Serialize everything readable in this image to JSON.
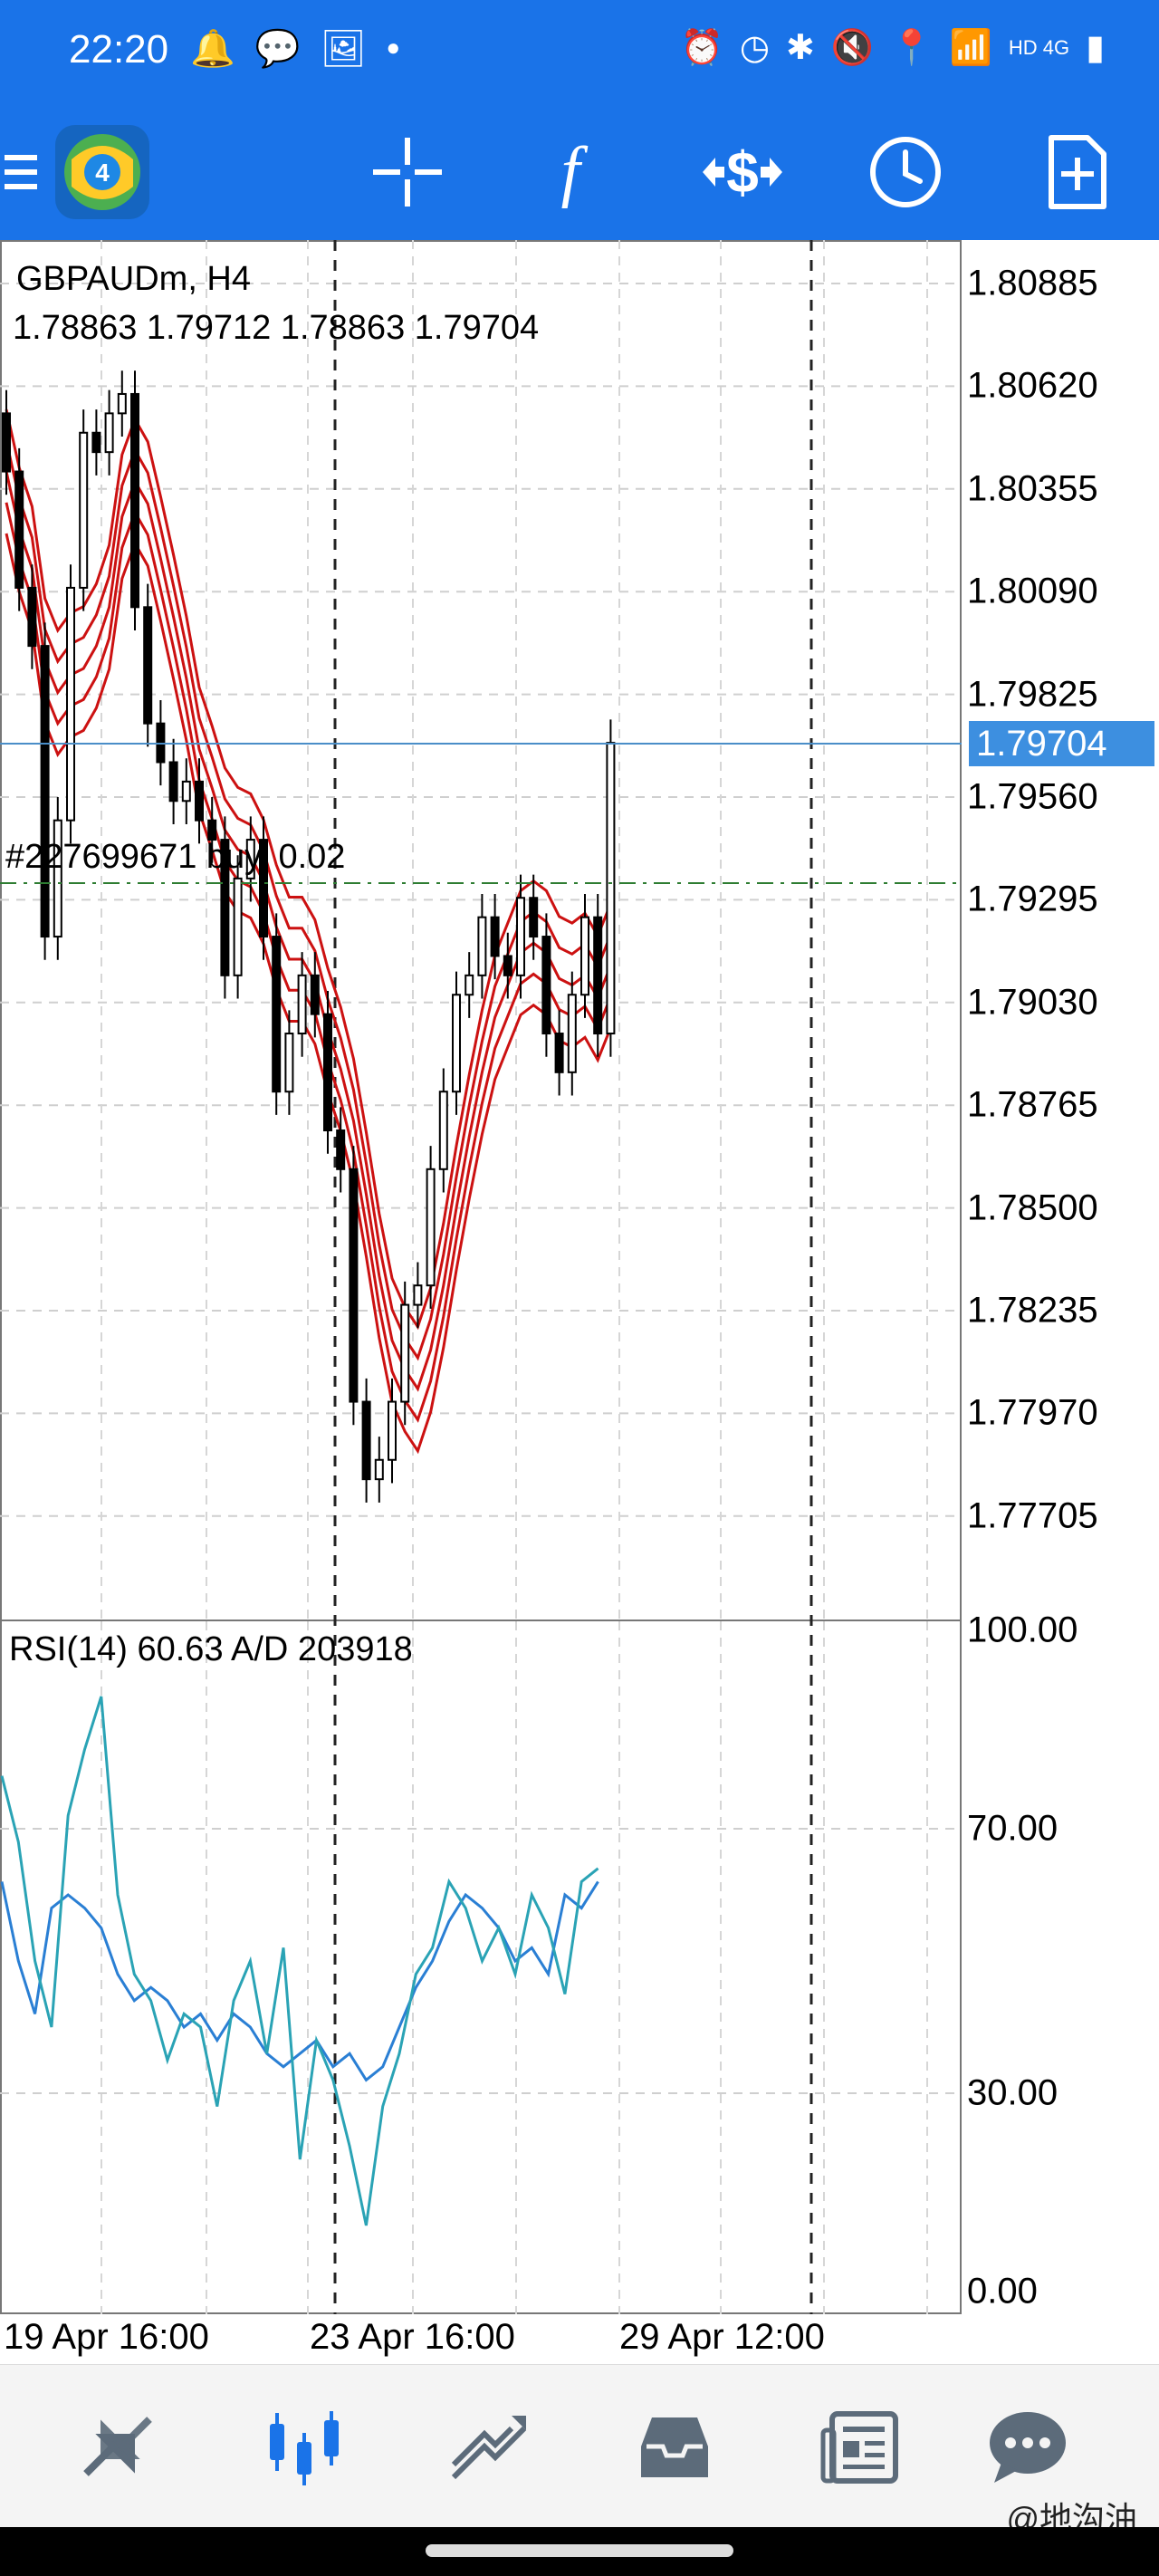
{
  "status_bar": {
    "time": "22:20",
    "left_icons": [
      "bell-icon",
      "wechat-icon",
      "gallery-icon",
      "dot-icon"
    ],
    "right_icons": [
      "alarm-icon",
      "clock-icon",
      "bluetooth-icon",
      "mute-icon",
      "location-icon",
      "wifi-icon",
      "hd-4g-signal-icon",
      "battery-icon"
    ],
    "net_label": "HD 4G"
  },
  "toolbar": {
    "items": [
      "menu-icon",
      "metatrader-logo",
      "crosshair-icon",
      "indicators-icon",
      "trade-icon",
      "period-icon",
      "new-order-icon"
    ]
  },
  "price_pane": {
    "symbol": "GBPAUDm, H4",
    "ohlc": "1.78863 1.79712 1.78863 1.79704",
    "position_label": "#227699671 buy, 0.02",
    "current_price": "1.79704",
    "y_ticks": [
      "1.80885",
      "1.80620",
      "1.80355",
      "1.80090",
      "1.79825",
      "1.79560",
      "1.79295",
      "1.79030",
      "1.78765",
      "1.78500",
      "1.78235",
      "1.77970",
      "1.77705"
    ]
  },
  "rsi_pane": {
    "label": "RSI(14) 60.63 A/D 203918",
    "y_ticks": [
      "100.00",
      "70.00",
      "30.00",
      "0.00"
    ]
  },
  "x_axis": {
    "labels": [
      "19 Apr 16:00",
      "23 Apr 16:00",
      "29 Apr 12:00"
    ]
  },
  "bottom_nav": {
    "items": [
      "quotes-icon",
      "chart-icon",
      "trade-icon",
      "history-icon",
      "news-icon",
      "chat-icon"
    ],
    "active": "chart-icon"
  },
  "watermark": "@地沟油",
  "colors": {
    "accent": "#1a73e8",
    "band": "#cc1111",
    "rsi": "#2aa3b5",
    "ad": "#2a7fd4",
    "price_tag": "#3d8fe0"
  }
}
